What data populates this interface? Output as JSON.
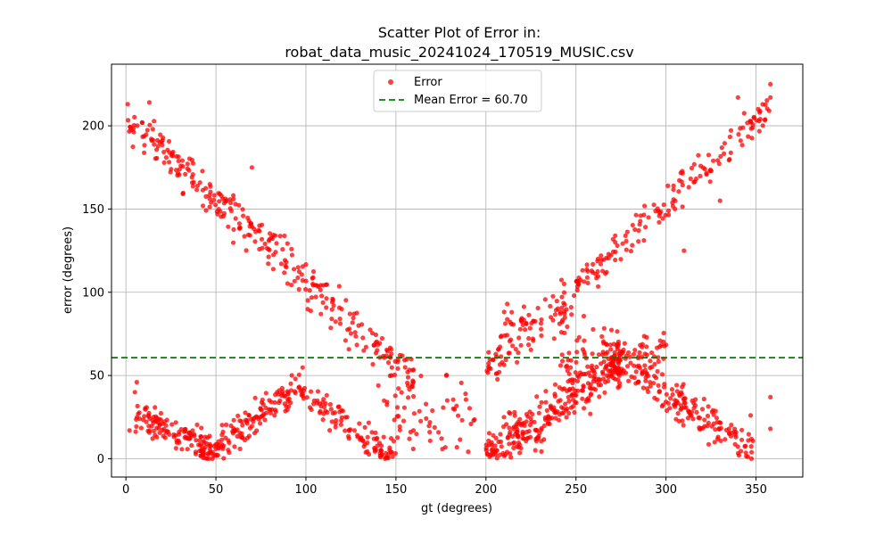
{
  "chart_data": {
    "type": "scatter",
    "title_line1": "Scatter Plot of Error in:",
    "title_line2": "robat_data_music_20241024_170519_MUSIC.csv",
    "xlabel": "gt (degrees)",
    "ylabel": "error (degrees)",
    "xlim": [
      -8,
      376
    ],
    "ylim": [
      -11,
      237
    ],
    "x_ticks": [
      0,
      50,
      100,
      150,
      200,
      250,
      300,
      350
    ],
    "y_ticks": [
      0,
      50,
      100,
      150,
      200
    ],
    "grid": true,
    "legend_position": "top-center",
    "series": [
      {
        "name": "Error",
        "marker": "circle",
        "color": "#ff0000",
        "opacity": 0.75
      }
    ],
    "mean_line": {
      "label": "Mean Error = 60.70",
      "value": 60.7,
      "color": "#008000",
      "style": "dashed"
    },
    "bands": [
      {
        "from": 1,
        "to": 160,
        "slope": -1.0,
        "intercept": 206,
        "count": 300,
        "spread": 9
      },
      {
        "from": 200,
        "to": 358,
        "slope": 1.0,
        "intercept": -147,
        "count": 230,
        "spread": 8
      },
      {
        "from": 5,
        "to": 45,
        "slope": -0.45,
        "intercept": 28,
        "count": 110,
        "spread": 6
      },
      {
        "from": 40,
        "to": 95,
        "slope": 0.8,
        "intercept": -33,
        "count": 150,
        "spread": 7
      },
      {
        "from": 95,
        "to": 150,
        "slope": -0.85,
        "intercept": 125,
        "count": 110,
        "spread": 7
      },
      {
        "from": 140,
        "to": 195,
        "slope": 0.0,
        "intercept": 25,
        "count": 60,
        "spread": 18
      },
      {
        "from": 200,
        "to": 275,
        "slope": 0.75,
        "intercept": -150,
        "count": 260,
        "spread": 10
      },
      {
        "from": 210,
        "to": 290,
        "slope": -0.3,
        "intercept": 150,
        "count": 60,
        "spread": 8
      },
      {
        "from": 270,
        "to": 350,
        "slope": -0.72,
        "intercept": 255,
        "count": 180,
        "spread": 8
      },
      {
        "from": 240,
        "to": 300,
        "slope": 0.2,
        "intercept": 5,
        "count": 80,
        "spread": 9
      }
    ],
    "outliers": [
      [
        1,
        213
      ],
      [
        13,
        214
      ],
      [
        9,
        202
      ],
      [
        358,
        225
      ],
      [
        358,
        217
      ],
      [
        358,
        37
      ],
      [
        358,
        18
      ],
      [
        5,
        40
      ],
      [
        6,
        46
      ],
      [
        2,
        17
      ],
      [
        340,
        217
      ],
      [
        352,
        208
      ],
      [
        347,
        26
      ],
      [
        310,
        125
      ],
      [
        268,
        60
      ],
      [
        178,
        50
      ],
      [
        210,
        25
      ],
      [
        330,
        155
      ],
      [
        305,
        150
      ],
      [
        70,
        175
      ]
    ]
  }
}
